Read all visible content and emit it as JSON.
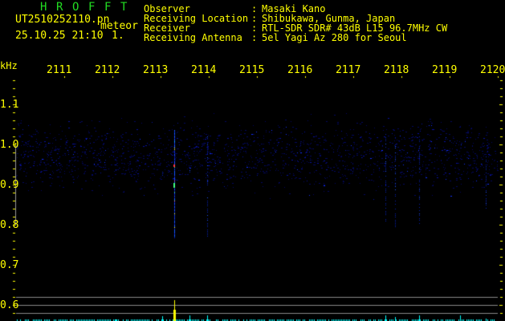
{
  "header": {
    "logo": [
      "H",
      "R",
      "O",
      "F",
      "F",
      "T"
    ],
    "filename": "UT2510252110.pn",
    "mode": "meteor",
    "datetime": "25.10.25 21:10",
    "count": "1.",
    "info": [
      {
        "label": "Observer",
        "value": "Masaki Kano"
      },
      {
        "label": "Receiving Location",
        "value": "Shibukawa, Gunma, Japan"
      },
      {
        "label": "Receiver",
        "value": "RTL-SDR SDR# 43dB L15 96.7MHz CW"
      },
      {
        "label": "Receiving Antenna",
        "value": "5el Yagi Az 280 for Seoul"
      }
    ]
  },
  "axis": {
    "unit": "kHz",
    "x_ticks": [
      "2111",
      "2112",
      "2113",
      "2114",
      "2115",
      "2116",
      "2117",
      "2118",
      "2119",
      "2120"
    ],
    "y_ticks": [
      "1.1",
      "1.0",
      "0.9",
      "0.8",
      "0.7",
      "0.6"
    ]
  },
  "colors": {
    "text": "#ffff00",
    "logo": "#22dd22",
    "signal": "#2040ff",
    "level": "#00ffff",
    "peak": "#ffff00"
  }
}
